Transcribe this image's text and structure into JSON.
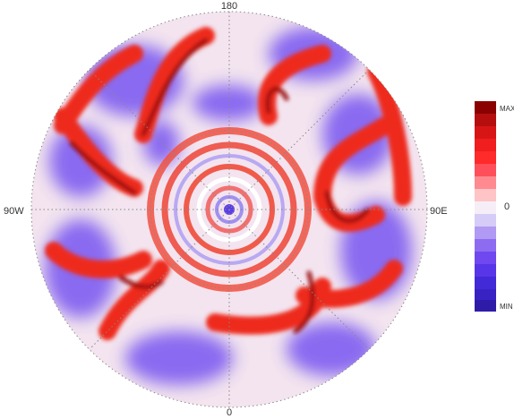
{
  "axes": {
    "top": "180",
    "left": "90W",
    "right": "90E",
    "bottom": "0"
  },
  "colorbar": {
    "max": "MAX",
    "zero": "0",
    "min": "MIN"
  }
}
